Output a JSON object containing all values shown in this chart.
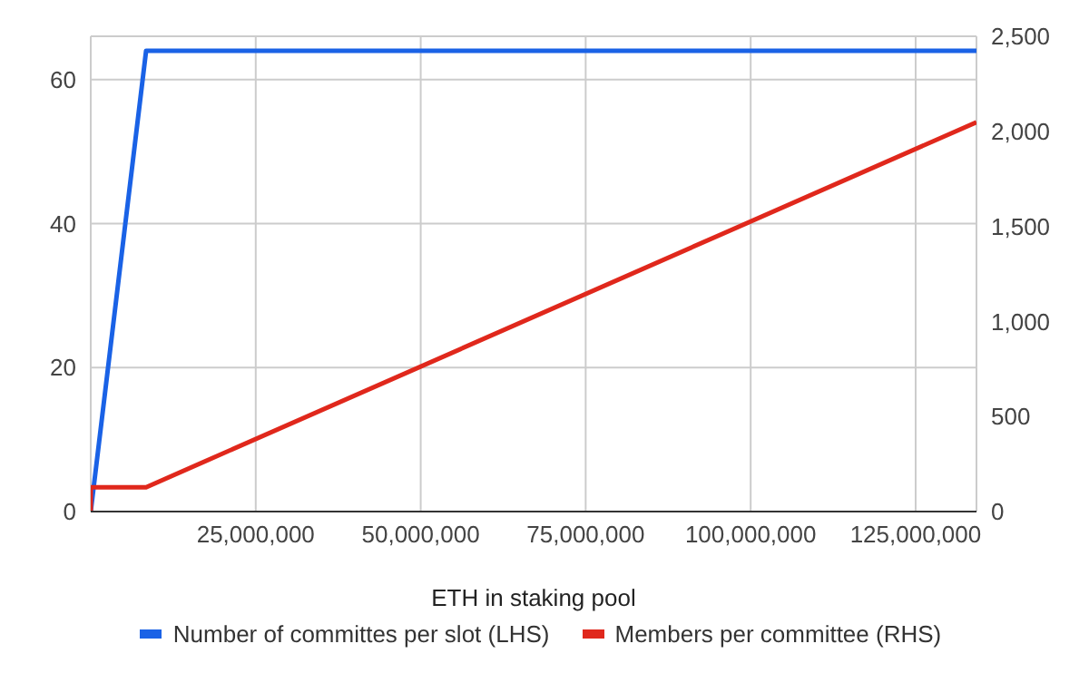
{
  "chart_data": {
    "type": "line",
    "xlabel": "ETH in staking pool",
    "xlim": [
      0,
      134217728
    ],
    "xticks": [
      {
        "value": 25000000,
        "label": "25,000,000"
      },
      {
        "value": 50000000,
        "label": "50,000,000"
      },
      {
        "value": 75000000,
        "label": "75,000,000"
      },
      {
        "value": 100000000,
        "label": "100,000,000"
      },
      {
        "value": 125000000,
        "label": "125,000,000"
      }
    ],
    "ylim": [
      0,
      66
    ],
    "yticks": [
      0,
      20,
      40,
      60
    ],
    "y2lim": [
      0,
      2500
    ],
    "y2ticks": [
      0,
      500,
      {
        "value": 1000,
        "label": "1,000"
      },
      {
        "value": 1500,
        "label": "1,500"
      },
      {
        "value": 2000,
        "label": "2,000"
      },
      {
        "value": 2500,
        "label": "2,500"
      }
    ],
    "grid": true,
    "legend": "bottom",
    "marker": "none",
    "line_style": "solid",
    "series": [
      {
        "name": "Number of committes per slot (LHS)",
        "color": "#1a62e6",
        "x": [
          0,
          8388608,
          134217728
        ],
        "values": [
          0,
          64,
          64
        ]
      },
      {
        "name": "Members per committee (RHS)",
        "color": "#e0281c",
        "axis": "y2",
        "x": [
          0,
          32,
          8388608,
          134217728
        ],
        "values": [
          0,
          128,
          128,
          2048
        ]
      }
    ]
  }
}
